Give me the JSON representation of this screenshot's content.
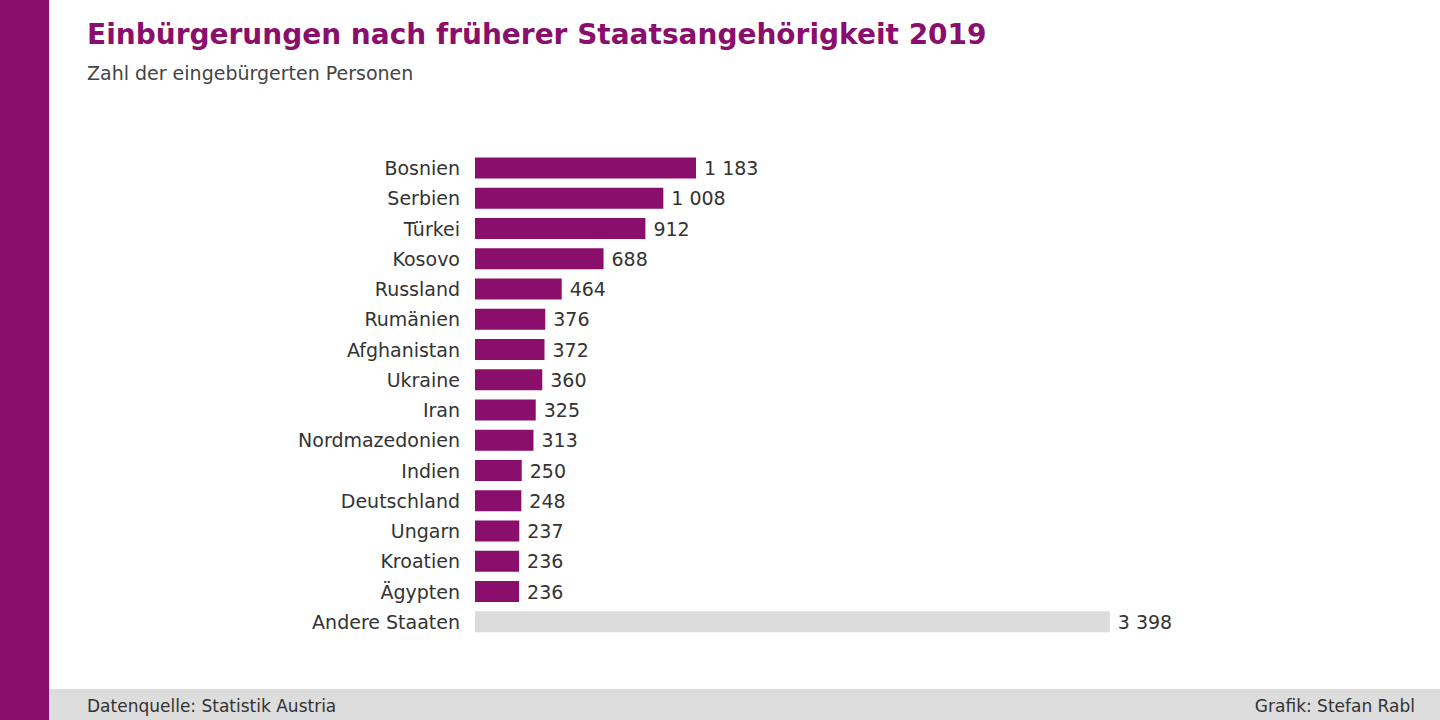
{
  "chart_data": {
    "type": "bar",
    "title": "Einbürgerungen nach früherer Staatsangehörigkeit 2019",
    "subtitle": "Zahl der eingebürgerten Personen",
    "orientation": "horizontal",
    "categories": [
      "Bosnien",
      "Serbien",
      "Türkei",
      "Kosovo",
      "Russland",
      "Rumänien",
      "Afghanistan",
      "Ukraine",
      "Iran",
      "Nordmazedonien",
      "Indien",
      "Deutschland",
      "Ungarn",
      "Kroatien",
      "Ägypten",
      "Andere Staaten"
    ],
    "values": [
      1183,
      1008,
      912,
      688,
      464,
      376,
      372,
      360,
      325,
      313,
      250,
      248,
      237,
      236,
      236,
      3398
    ],
    "value_labels": [
      "1 183",
      "1 008",
      "912",
      "688",
      "464",
      "376",
      "372",
      "360",
      "325",
      "313",
      "250",
      "248",
      "237",
      "236",
      "236",
      "3 398"
    ],
    "colors": [
      "#8a0e6c",
      "#8a0e6c",
      "#8a0e6c",
      "#8a0e6c",
      "#8a0e6c",
      "#8a0e6c",
      "#8a0e6c",
      "#8a0e6c",
      "#8a0e6c",
      "#8a0e6c",
      "#8a0e6c",
      "#8a0e6c",
      "#8a0e6c",
      "#8a0e6c",
      "#8a0e6c",
      "#dcdcdc"
    ],
    "xlim": [
      0,
      3400
    ],
    "data_labels": true,
    "tick_labels": "y",
    "grid": false,
    "annotations": [
      "Datenquelle: Statistik Austria",
      "Grafik: Stefan Rabl"
    ]
  }
}
